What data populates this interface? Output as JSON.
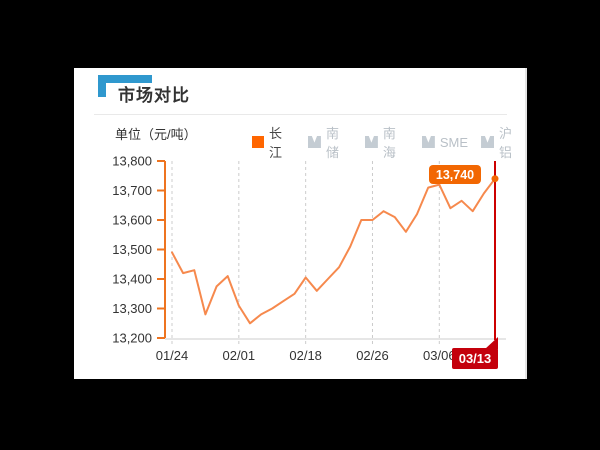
{
  "header": {
    "title": "市场对比"
  },
  "unit_label": "单位（元/吨）",
  "legend": {
    "items": [
      {
        "label": "长江",
        "active": true
      },
      {
        "label": "南储",
        "active": false
      },
      {
        "label": "南海",
        "active": false
      },
      {
        "label": "SME",
        "active": false
      },
      {
        "label": "沪铝",
        "active": false
      }
    ]
  },
  "colors": {
    "page_bg": "#000000",
    "panel_bg": "#ffffff",
    "accent_blue": "#2f98ce",
    "title_text": "#333333",
    "axis_orange": "#ee7420",
    "line_orange": "#f6894d",
    "grid_grey": "#cccccc",
    "tick_text": "#333333",
    "legend_active_swatch": "#ff6600",
    "legend_inactive_icon": "#c4ccd3",
    "crosshair_red": "#cc0000",
    "badge_red": "#c4000c",
    "badge_orange": "#f26702",
    "badge_text": "#ffffff"
  },
  "chart_data": {
    "type": "line",
    "title": "市场对比",
    "unit": "单位（元/吨）",
    "legend_position": "top",
    "grid": "vertical-dashed",
    "ylim": [
      13200,
      13800
    ],
    "y_tick_step": 100,
    "y_ticks": [
      "13,200",
      "13,300",
      "13,400",
      "13,500",
      "13,600",
      "13,700",
      "13,800"
    ],
    "n_points": 30,
    "series": [
      {
        "name": "长江",
        "color": "#f6894d",
        "values": [
          13490,
          13420,
          13430,
          13280,
          13375,
          13410,
          13310,
          13250,
          13280,
          13300,
          13325,
          13350,
          13405,
          13360,
          13400,
          13440,
          13510,
          13600,
          13600,
          13630,
          13610,
          13560,
          13620,
          13710,
          13720,
          13640,
          13665,
          13630,
          13690,
          13740
        ]
      }
    ],
    "x_axis_labels": [
      {
        "label": "01/24",
        "index": 0
      },
      {
        "label": "02/01",
        "index": 6
      },
      {
        "label": "02/18",
        "index": 12
      },
      {
        "label": "02/26",
        "index": 18
      },
      {
        "label": "03/06",
        "index": 24
      }
    ],
    "crosshair": {
      "index": 29,
      "label": "03/13"
    },
    "last_point": {
      "value": 13740,
      "label": "13,740"
    }
  }
}
